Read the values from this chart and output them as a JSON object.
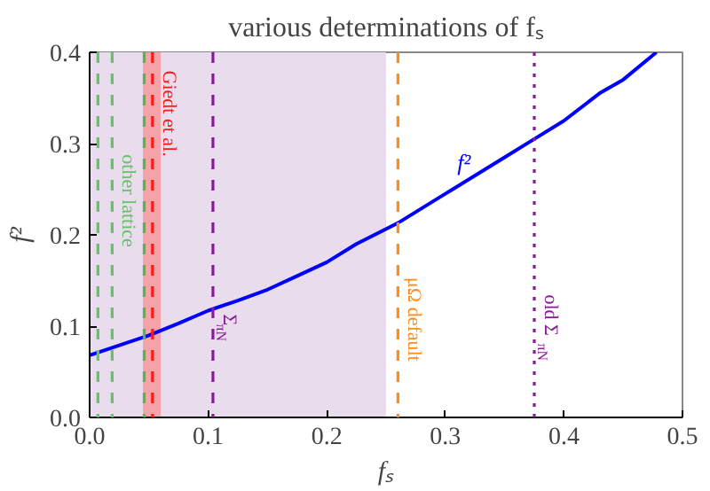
{
  "chart_data": {
    "type": "line",
    "title": "various determinations of fₛ",
    "xlabel": "fₛ",
    "ylabel": "f²",
    "x": [
      0,
      0.025,
      0.05,
      0.075,
      0.1,
      0.125,
      0.15,
      0.175,
      0.2,
      0.225,
      0.26,
      0.3,
      0.35,
      0.375,
      0.4,
      0.43,
      0.45,
      0.478
    ],
    "series": [
      {
        "color": "#0000ff",
        "values": [
          0.068,
          0.079,
          0.09,
          0.103,
          0.117,
          0.128,
          0.14,
          0.155,
          0.17,
          0.19,
          0.213,
          0.245,
          0.285,
          0.305,
          0.325,
          0.355,
          0.37,
          0.4
        ]
      }
    ],
    "annotations": [
      {
        "text": "f²",
        "x": 0.31,
        "y": 0.265
      }
    ],
    "xlim": [
      0,
      0.5
    ],
    "ylim": [
      0,
      0.4
    ],
    "xticks": [
      {
        "value": 0,
        "label": "0.0"
      },
      0.1,
      0.2,
      0.3,
      0.4,
      0.5
    ],
    "yticks": [
      {
        "value": 0,
        "label": "0.0"
      },
      0.1,
      0.2,
      0.3,
      0.4
    ],
    "bands": [
      {
        "axis": "x",
        "from": 0,
        "to": 0.25,
        "label": null,
        "color": "#e9dcec"
      },
      {
        "axis": "x",
        "from": 0.045,
        "to": 0.06,
        "label": null,
        "color": "#f4a3a8"
      }
    ],
    "ref_lines": [
      {
        "axis": "x",
        "value": 0.007,
        "label": null,
        "color": "#66c266",
        "line_style": "dashed"
      },
      {
        "axis": "x",
        "value": 0.019,
        "label": "other lattice",
        "color": "#66c266",
        "line_style": "dashed"
      },
      {
        "axis": "x",
        "value": 0.046,
        "label": null,
        "color": "#55b555",
        "line_style": "dashed"
      },
      {
        "axis": "x",
        "value": 0.053,
        "label": "Giedt et al.",
        "color": "#ff1a1a",
        "line_style": "dashed"
      },
      {
        "axis": "x",
        "value": 0.104,
        "label": "Σ$_{πN}$",
        "color": "#8a1a9a",
        "line_style": "dashed"
      },
      {
        "axis": "x",
        "value": 0.26,
        "label": "μΩ default",
        "color": "#ff8c1a",
        "line_style": "dashed"
      },
      {
        "axis": "x",
        "value": 0.375,
        "label": "old Σ$_{πN}$",
        "color": "#8a1a9a",
        "line_style": "dotted"
      }
    ],
    "grid": false,
    "marker": "none",
    "line_style": "solid"
  }
}
